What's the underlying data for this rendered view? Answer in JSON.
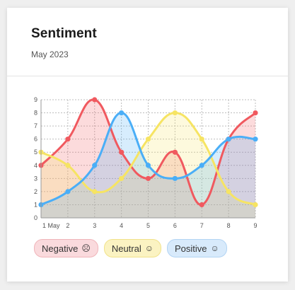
{
  "card": {
    "title": "Sentiment",
    "subtitle": "May 2023"
  },
  "chart_data": {
    "type": "area",
    "x": [
      1,
      2,
      3,
      4,
      5,
      6,
      7,
      8,
      9
    ],
    "xticks": [
      "1 May",
      "2",
      "3",
      "4",
      "5",
      "6",
      "7",
      "8",
      "9"
    ],
    "ylim": [
      0,
      9
    ],
    "yticks": [
      "0",
      "1",
      "2",
      "3",
      "4",
      "5",
      "6",
      "7",
      "8",
      "9"
    ],
    "grid": true,
    "legend_position": "bottom-left",
    "series": [
      {
        "name": "Negative",
        "values": [
          4,
          6,
          9,
          5,
          3,
          5,
          1,
          6,
          8
        ],
        "color": "#f0595f"
      },
      {
        "name": "Neutral",
        "values": [
          5,
          4,
          2,
          3,
          6,
          8,
          6,
          2,
          1
        ],
        "color": "#f6e463"
      },
      {
        "name": "Positive",
        "values": [
          1,
          2,
          4,
          8,
          4,
          3,
          4,
          6,
          6
        ],
        "color": "#4aaef7"
      }
    ]
  },
  "legend": [
    {
      "label": "Negative",
      "icon": "sad-face-icon",
      "bg": "#fadadd",
      "border": "#f0b4b9"
    },
    {
      "label": "Neutral",
      "icon": "neutral-face-icon",
      "bg": "#fbf3c2",
      "border": "#f1e28a"
    },
    {
      "label": "Positive",
      "icon": "happy-face-icon",
      "bg": "#d8eafb",
      "border": "#b2d4f3"
    }
  ]
}
